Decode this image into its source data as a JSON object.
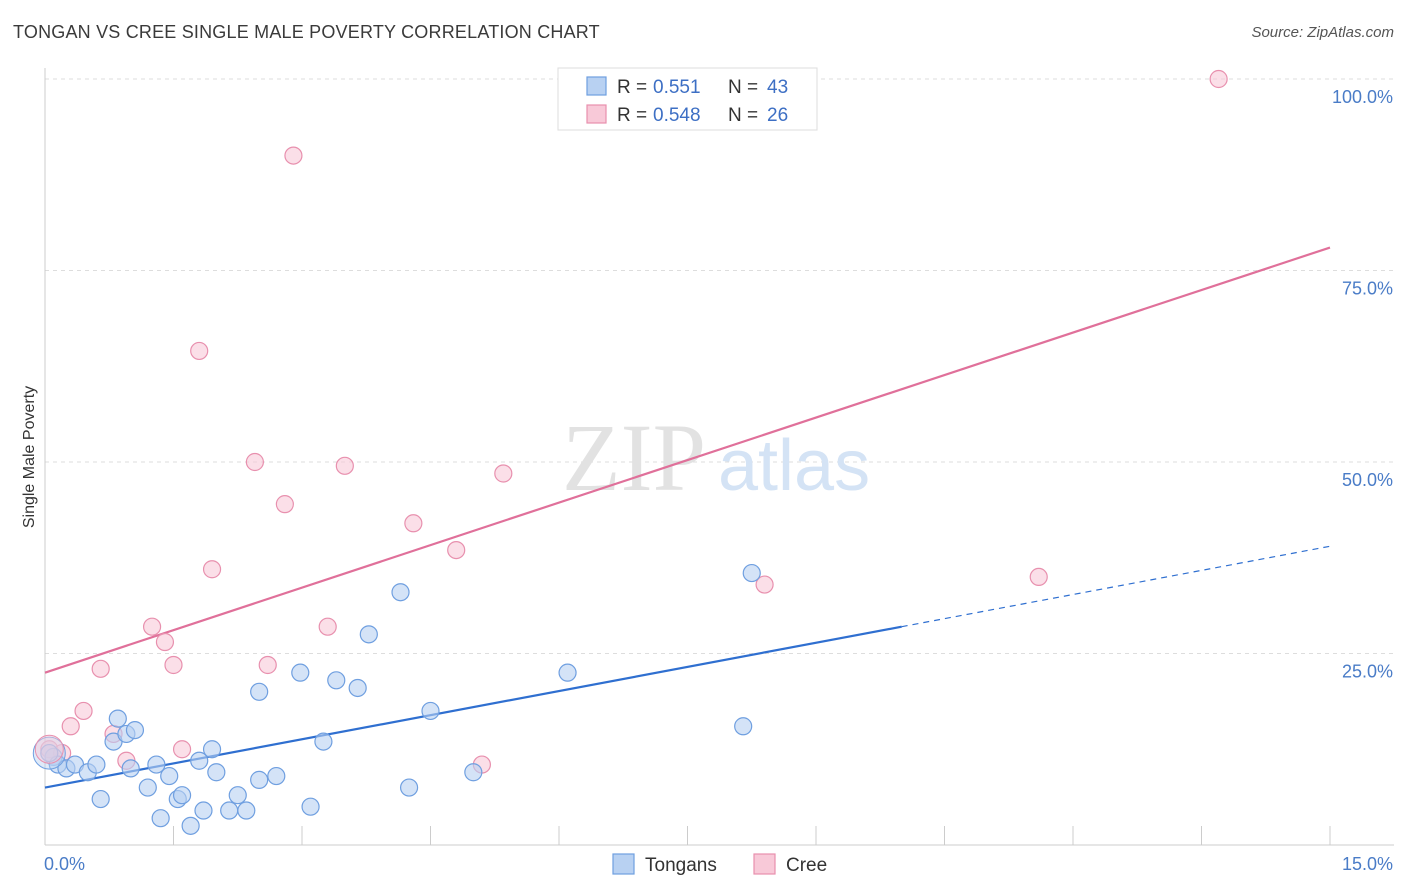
{
  "title": "TONGAN VS CREE SINGLE MALE POVERTY CORRELATION CHART",
  "source": "Source: ZipAtlas.com",
  "watermark": {
    "zip": "ZIP",
    "atlas": "atlas"
  },
  "colors": {
    "tongans_fill": "#b8d1f2",
    "tongans_stroke": "#6f9fe0",
    "tongans_line": "#2f6fd0",
    "cree_fill": "#f8c9d8",
    "cree_stroke": "#e890ae",
    "cree_line": "#e0709a",
    "grid": "#dddddd",
    "tick_text": "#4a7cc7"
  },
  "legend": {
    "rows": [
      {
        "series": "Tongans",
        "r_label": "R =",
        "r_value": "0.551",
        "n_label": "N =",
        "n_value": "43"
      },
      {
        "series": "Cree",
        "r_label": "R =",
        "r_value": "0.548",
        "n_label": "N =",
        "n_value": "26"
      }
    ]
  },
  "chart_data": {
    "type": "scatter",
    "title": "TONGAN VS CREE SINGLE MALE POVERTY CORRELATION CHART",
    "xlabel": "",
    "ylabel": "Single Male Poverty",
    "xlim": [
      0,
      15
    ],
    "ylim": [
      0,
      100
    ],
    "x_tick_labels": [
      {
        "value": 0,
        "label": "0.0%"
      },
      {
        "value": 15,
        "label": "15.0%"
      }
    ],
    "y_tick_labels": [
      {
        "value": 25,
        "label": "25.0%"
      },
      {
        "value": 50,
        "label": "50.0%"
      },
      {
        "value": 75,
        "label": "75.0%"
      },
      {
        "value": 100,
        "label": "100.0%"
      }
    ],
    "legend_position": "top-center",
    "bottom_legend": [
      "Tongans",
      "Cree"
    ],
    "series": [
      {
        "name": "Tongans",
        "points": [
          [
            0.1,
            11.5
          ],
          [
            0.15,
            10.5
          ],
          [
            0.25,
            10.0
          ],
          [
            0.35,
            10.5
          ],
          [
            0.5,
            9.5
          ],
          [
            0.6,
            10.5
          ],
          [
            0.65,
            6.0
          ],
          [
            0.8,
            13.5
          ],
          [
            0.85,
            16.5
          ],
          [
            0.95,
            14.5
          ],
          [
            1.05,
            15.0
          ],
          [
            1.0,
            10.0
          ],
          [
            1.2,
            7.5
          ],
          [
            1.3,
            10.5
          ],
          [
            1.35,
            3.5
          ],
          [
            1.45,
            9.0
          ],
          [
            1.55,
            6.0
          ],
          [
            1.6,
            6.5
          ],
          [
            1.7,
            2.5
          ],
          [
            1.8,
            11.0
          ],
          [
            1.85,
            4.5
          ],
          [
            1.95,
            12.5
          ],
          [
            2.0,
            9.5
          ],
          [
            2.15,
            4.5
          ],
          [
            2.25,
            6.5
          ],
          [
            2.35,
            4.5
          ],
          [
            2.5,
            20.0
          ],
          [
            2.5,
            8.5
          ],
          [
            2.7,
            9.0
          ],
          [
            2.98,
            22.5
          ],
          [
            3.1,
            5.0
          ],
          [
            3.25,
            13.5
          ],
          [
            3.4,
            21.5
          ],
          [
            3.65,
            20.5
          ],
          [
            3.78,
            27.5
          ],
          [
            4.15,
            33.0
          ],
          [
            4.25,
            7.5
          ],
          [
            4.5,
            17.5
          ],
          [
            5.0,
            9.5
          ],
          [
            6.1,
            22.5
          ],
          [
            8.15,
            15.5
          ],
          [
            8.25,
            35.5
          ],
          [
            0.05,
            12.0
          ]
        ],
        "trend": {
          "x": [
            0,
            10
          ],
          "y": [
            7.5,
            28.5
          ]
        },
        "trend_extension": {
          "x": [
            10,
            15
          ],
          "y": [
            28.5,
            39.0
          ]
        }
      },
      {
        "name": "Cree",
        "points": [
          [
            0.05,
            12.5
          ],
          [
            0.3,
            15.5
          ],
          [
            0.45,
            17.5
          ],
          [
            0.65,
            23.0
          ],
          [
            0.8,
            14.5
          ],
          [
            0.95,
            11.0
          ],
          [
            1.25,
            28.5
          ],
          [
            1.4,
            26.5
          ],
          [
            1.5,
            23.5
          ],
          [
            1.6,
            12.5
          ],
          [
            1.8,
            64.5
          ],
          [
            1.95,
            36.0
          ],
          [
            2.45,
            50.0
          ],
          [
            2.6,
            23.5
          ],
          [
            2.8,
            44.5
          ],
          [
            2.9,
            90.0
          ],
          [
            3.3,
            28.5
          ],
          [
            3.5,
            49.5
          ],
          [
            4.3,
            42.0
          ],
          [
            4.8,
            38.5
          ],
          [
            5.1,
            10.5
          ],
          [
            5.35,
            48.5
          ],
          [
            8.4,
            34.0
          ],
          [
            11.6,
            35.0
          ],
          [
            13.7,
            100.0
          ],
          [
            0.2,
            12.0
          ]
        ],
        "trend": {
          "x": [
            0,
            15
          ],
          "y": [
            22.5,
            78.0
          ]
        }
      }
    ]
  }
}
